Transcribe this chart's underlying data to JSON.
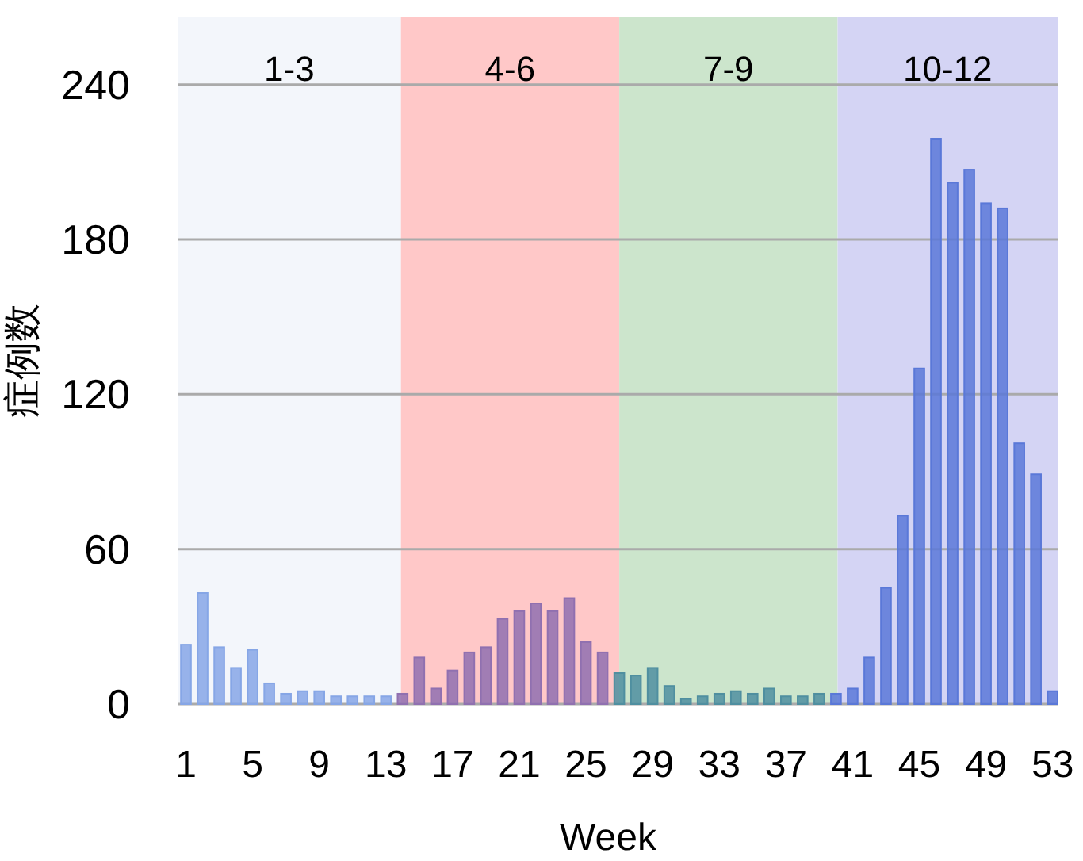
{
  "chart_data": {
    "type": "bar",
    "xlabel": "Week",
    "ylabel": "症例数",
    "x": [
      1,
      2,
      3,
      4,
      5,
      6,
      7,
      8,
      9,
      10,
      11,
      12,
      13,
      14,
      15,
      16,
      17,
      18,
      19,
      20,
      21,
      22,
      23,
      24,
      25,
      26,
      27,
      28,
      29,
      30,
      31,
      32,
      33,
      34,
      35,
      36,
      37,
      38,
      39,
      40,
      41,
      42,
      43,
      44,
      45,
      46,
      47,
      48,
      49,
      50,
      51,
      52,
      53
    ],
    "values": [
      23,
      43,
      22,
      14,
      21,
      8,
      4,
      5,
      5,
      3,
      3,
      3,
      3,
      4,
      18,
      6,
      13,
      20,
      22,
      33,
      36,
      39,
      36,
      41,
      24,
      20,
      12,
      11,
      14,
      7,
      2,
      3,
      4,
      5,
      4,
      6,
      3,
      3,
      4,
      4,
      6,
      18,
      45,
      73,
      130,
      219,
      202,
      207,
      194,
      192,
      101,
      89,
      5
    ],
    "colors": [
      "#86a6e6",
      "#86a6e6",
      "#86a6e6",
      "#86a6e6",
      "#86a6e6",
      "#86a6e6",
      "#86a6e6",
      "#86a6e6",
      "#86a6e6",
      "#86a6e6",
      "#86a6e6",
      "#86a6e6",
      "#86a6e6",
      "#9070b0",
      "#9070b0",
      "#9070b0",
      "#9070b0",
      "#9070b0",
      "#9070b0",
      "#9070b0",
      "#9070b0",
      "#9070b0",
      "#9070b0",
      "#9070b0",
      "#9070b0",
      "#9070b0",
      "#4f8fa0",
      "#4f8fa0",
      "#4f8fa0",
      "#4f8fa0",
      "#4f8fa0",
      "#4f8fa0",
      "#4f8fa0",
      "#4f8fa0",
      "#4f8fa0",
      "#4f8fa0",
      "#4f8fa0",
      "#4f8fa0",
      "#4f8fa0",
      "#5a78d8",
      "#5a78d8",
      "#5a78d8",
      "#5a78d8",
      "#5a78d8",
      "#5a78d8",
      "#5a78d8",
      "#5a78d8",
      "#5a78d8",
      "#5a78d8",
      "#5a78d8",
      "#5a78d8",
      "#5a78d8",
      "#5a78d8"
    ],
    "xlim": [
      0.5,
      53.3
    ],
    "xticks": [
      1,
      5,
      9,
      13,
      17,
      21,
      25,
      29,
      33,
      37,
      41,
      45,
      49,
      53
    ],
    "ylim": [
      0,
      266
    ],
    "yticks": [
      0,
      60,
      120,
      180,
      240
    ],
    "grid": "y",
    "bands": [
      {
        "axis": "x",
        "from": 0.5,
        "to": 13.9,
        "label": "1-3",
        "color": "#f3f6fb"
      },
      {
        "axis": "x",
        "from": 13.9,
        "to": 27,
        "label": "4-6",
        "color": "#ffc8c8"
      },
      {
        "axis": "x",
        "from": 27,
        "to": 40.1,
        "label": "7-9",
        "color": "#cce5cc"
      },
      {
        "axis": "x",
        "from": 40.1,
        "to": 53.3,
        "label": "10-12",
        "color": "#d4d4f4"
      }
    ]
  }
}
